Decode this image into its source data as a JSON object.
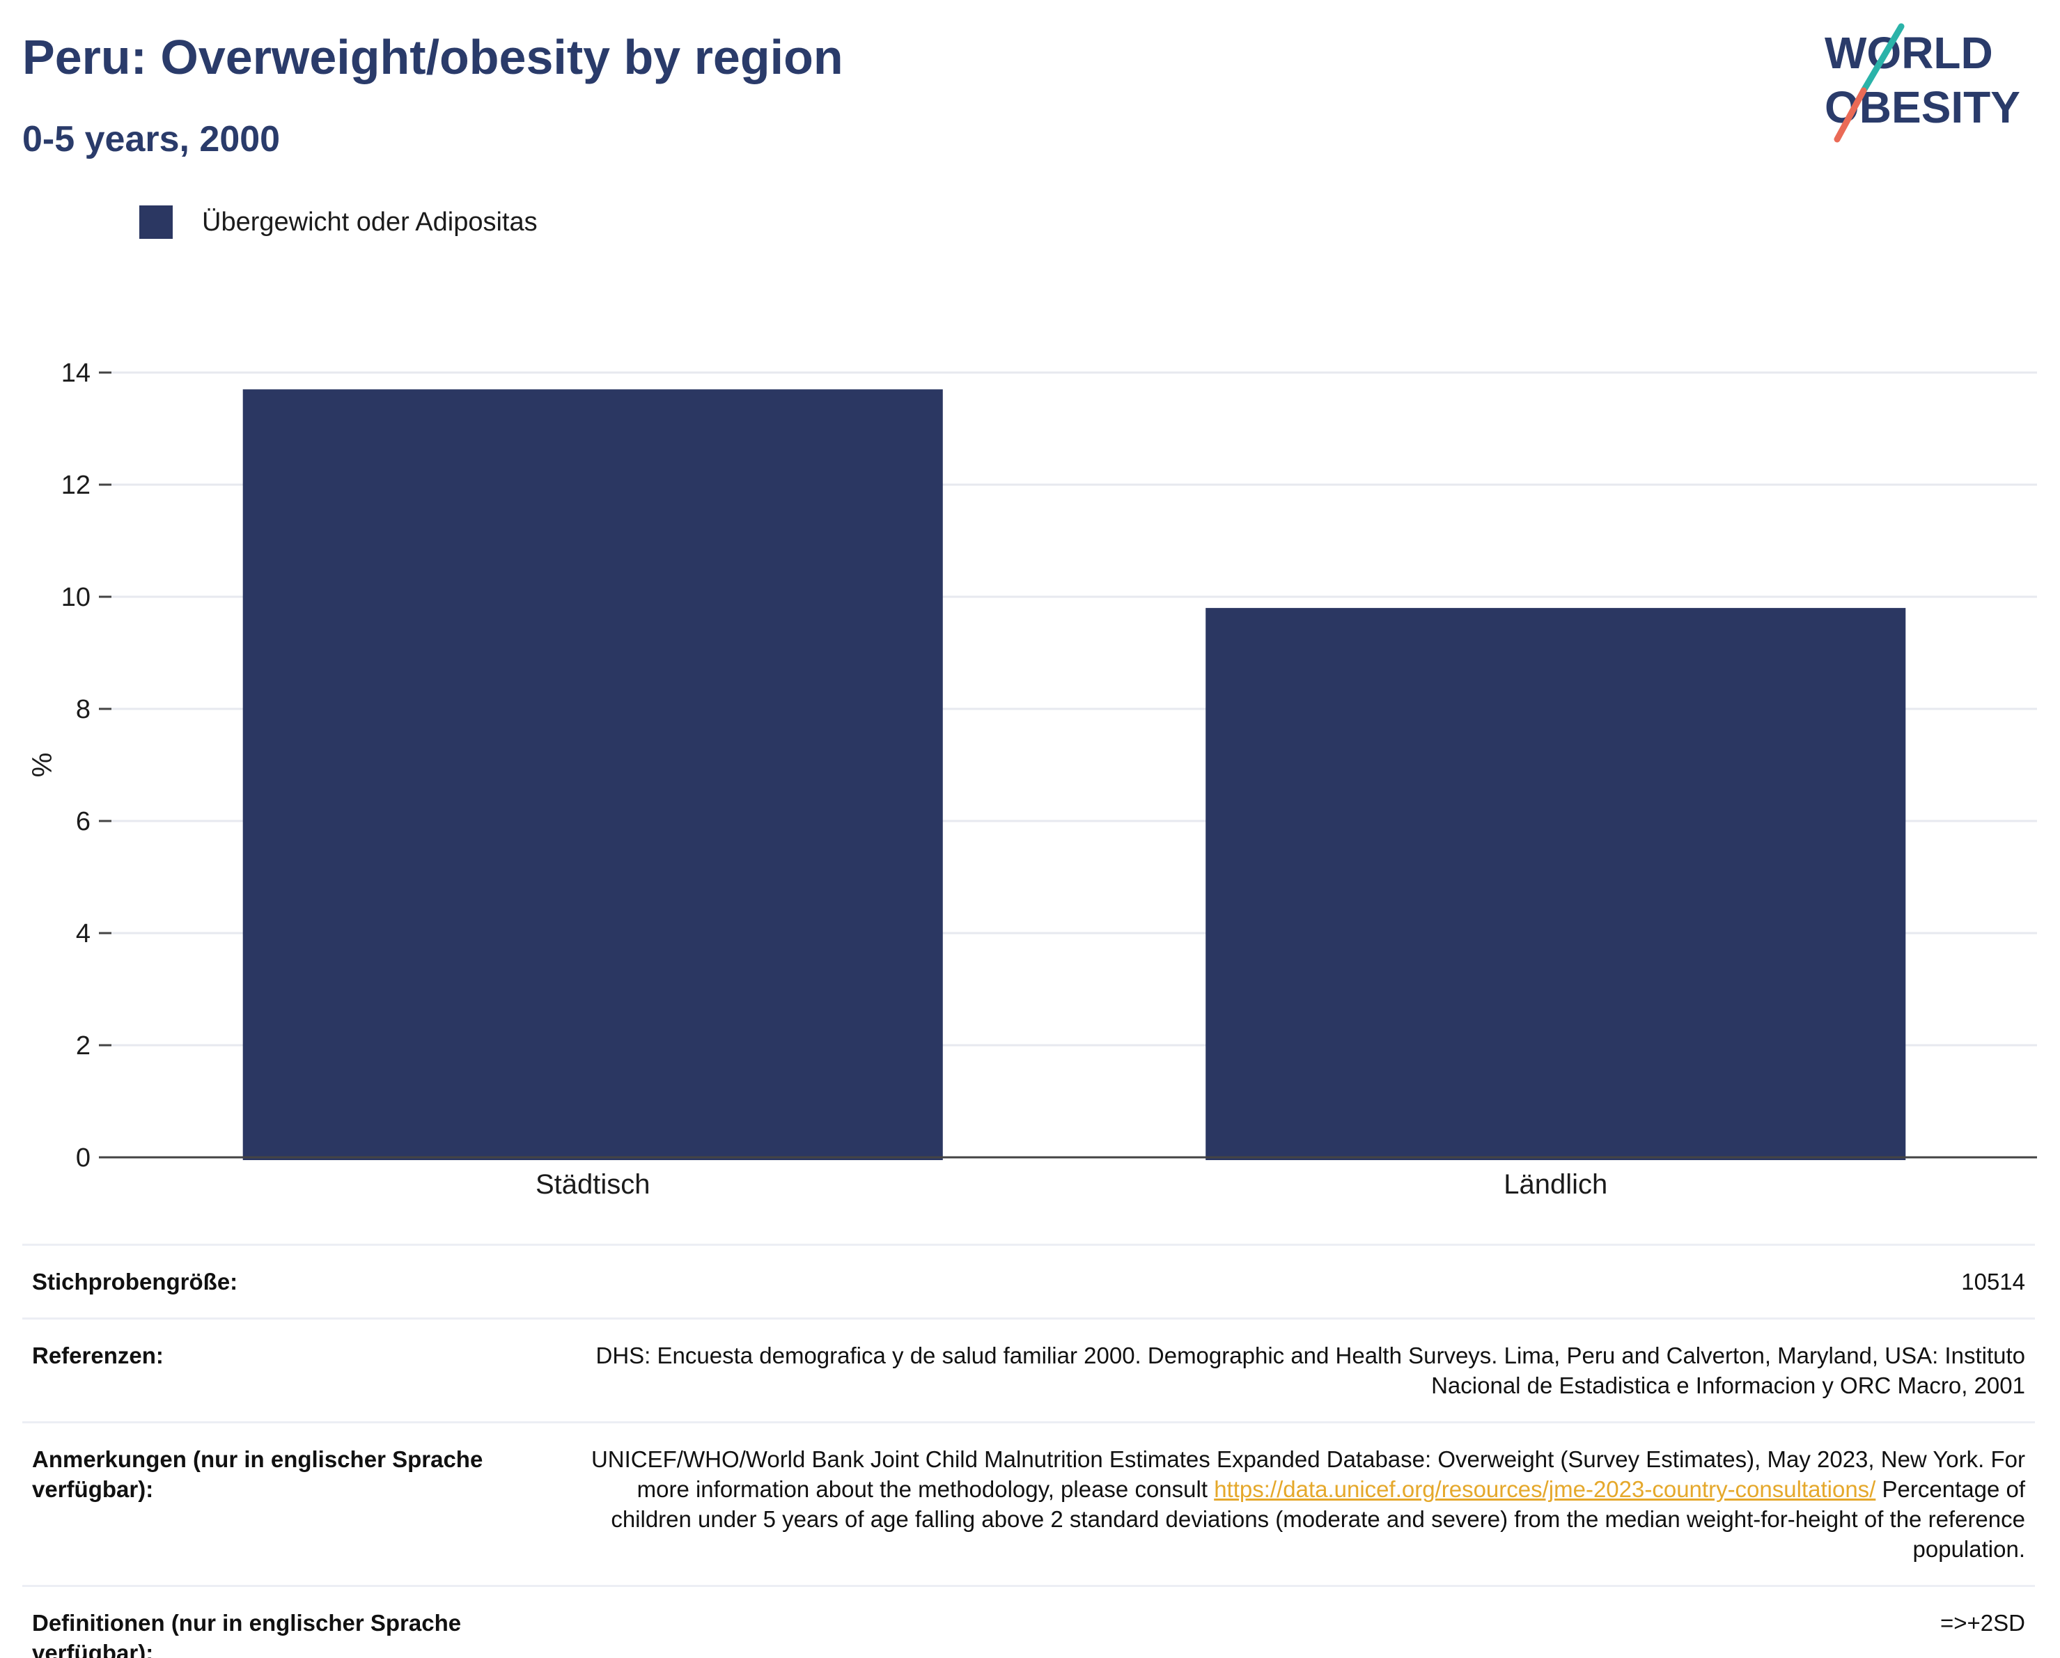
{
  "header": {
    "title": "Peru: Overweight/obesity by region",
    "subtitle": "0-5 years, 2000"
  },
  "logo": {
    "line1": "WORLD",
    "line2": "OBESITY"
  },
  "colors": {
    "bar": "#2b3762",
    "title": "#2a3b6a",
    "link": "#e5a82b",
    "logo_teal": "#2bb3a9",
    "logo_coral": "#ea6a56"
  },
  "chart_data": {
    "type": "bar",
    "categories": [
      "Städtisch",
      "Ländlich"
    ],
    "series": [
      {
        "name": "Übergewicht oder Adipositas",
        "values": [
          13.7,
          9.8
        ]
      }
    ],
    "ylabel": "%",
    "xlabel": "",
    "ylim": [
      0,
      14
    ],
    "yticks": [
      0,
      2,
      4,
      6,
      8,
      10,
      12,
      14
    ],
    "grid": true,
    "legend_position": "top-left"
  },
  "info": {
    "sample_size": {
      "label": "Stichprobengröße:",
      "value": "10514"
    },
    "references": {
      "label": "Referenzen:",
      "value": "DHS: Encuesta demografica y de salud familiar 2000. Demographic and Health Surveys. Lima, Peru and Calverton, Maryland, USA: Instituto Nacional de Estadistica e Informacion y ORC Macro, 2001"
    },
    "notes": {
      "label": "Anmerkungen (nur in englischer Sprache verfügbar):",
      "text_before": "UNICEF/WHO/World Bank Joint Child Malnutrition Estimates Expanded Database: Overweight (Survey Estimates), May 2023, New York. For more information about the methodology, please consult",
      "link": "https://data.unicef.org/resources/jme-2023-country-consultations/",
      "text_after": "Percentage of children under 5 years of age falling above 2 standard deviations (moderate and severe) from the median weight-for-height of the reference population."
    },
    "definitions": {
      "label": "Definitionen (nur in englischer Sprache verfügbar):",
      "value": "=>+2SD"
    }
  }
}
